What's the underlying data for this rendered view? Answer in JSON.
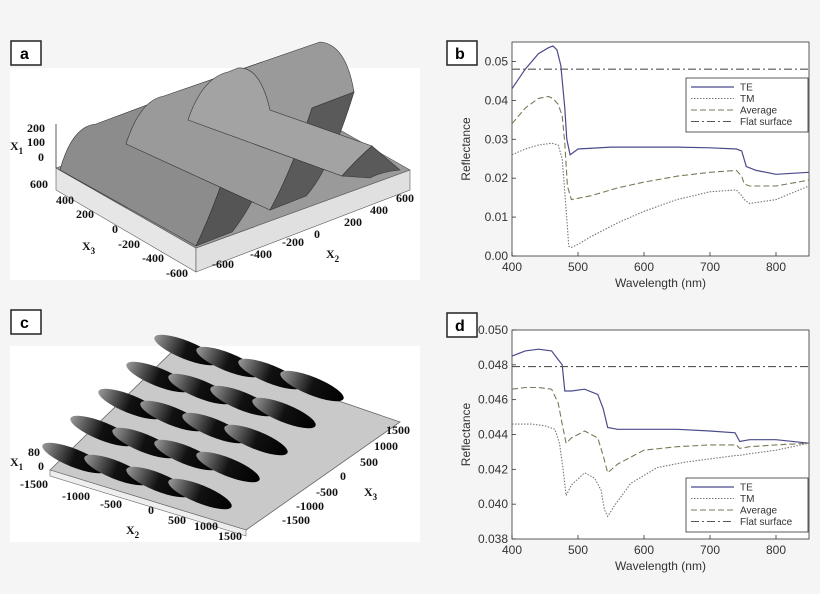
{
  "panels": {
    "a": {
      "label": "a"
    },
    "b": {
      "label": "b"
    },
    "c": {
      "label": "c"
    },
    "d": {
      "label": "d"
    }
  },
  "surface_a": {
    "x1_label": "X",
    "x1_sub": "1",
    "x2_label": "X",
    "x2_sub": "2",
    "x3_label": "X",
    "x3_sub": "3",
    "x1_ticks": [
      "200",
      "100",
      "0"
    ],
    "x3_ticks": [
      "600",
      "400",
      "200",
      "0",
      "-200",
      "-400",
      "-600"
    ],
    "x2_ticks": [
      "-600",
      "-400",
      "-200",
      "0",
      "200",
      "400",
      "600"
    ]
  },
  "surface_c": {
    "x1_label": "X",
    "x1_sub": "1",
    "x2_label": "X",
    "x2_sub": "2",
    "x3_label": "X",
    "x3_sub": "3",
    "x1_ticks": [
      "80",
      "0"
    ],
    "x2_ticks": [
      "-1500",
      "-1000",
      "-500",
      "0",
      "500",
      "1000",
      "1500"
    ],
    "x3_ticks": [
      "1500",
      "1000",
      "500",
      "0",
      "-500",
      "-1000",
      "-1500"
    ]
  },
  "colors": {
    "te": "#4a4a8a",
    "tm": "#777777",
    "average": "#7a7a5a",
    "flat": "#555555",
    "bg": "#f5f5f5"
  },
  "chart_data": [
    {
      "type": "line",
      "panel": "b",
      "title": "",
      "xlabel": "Wavelength (nm)",
      "ylabel": "Reflectance",
      "xlim": [
        400,
        850
      ],
      "ylim": [
        0.0,
        0.055
      ],
      "xticks": [
        400,
        500,
        600,
        700,
        800
      ],
      "yticks": [
        "0.00",
        "0.01",
        "0.02",
        "0.03",
        "0.04",
        "0.05"
      ],
      "ytick_values": [
        0.0,
        0.01,
        0.02,
        0.03,
        0.04,
        0.05
      ],
      "legend": [
        "TE",
        "TM",
        "Average",
        "Flat surface"
      ],
      "series": [
        {
          "name": "TE",
          "x": [
            400,
            420,
            440,
            455,
            462,
            468,
            474,
            480,
            483,
            488,
            500,
            550,
            600,
            650,
            700,
            740,
            748,
            755,
            770,
            800,
            850
          ],
          "y": [
            0.043,
            0.048,
            0.052,
            0.0535,
            0.054,
            0.053,
            0.049,
            0.038,
            0.03,
            0.026,
            0.0275,
            0.028,
            0.028,
            0.028,
            0.0278,
            0.0275,
            0.027,
            0.023,
            0.022,
            0.021,
            0.0215
          ]
        },
        {
          "name": "TM",
          "x": [
            400,
            420,
            440,
            460,
            470,
            476,
            482,
            486,
            490,
            500,
            520,
            560,
            600,
            650,
            700,
            740,
            748,
            752,
            760,
            800,
            850
          ],
          "y": [
            0.026,
            0.0275,
            0.0285,
            0.029,
            0.0285,
            0.025,
            0.012,
            0.0025,
            0.0022,
            0.003,
            0.005,
            0.0085,
            0.0115,
            0.0145,
            0.0165,
            0.017,
            0.0155,
            0.0145,
            0.0135,
            0.0145,
            0.018
          ]
        },
        {
          "name": "Average",
          "x": [
            400,
            420,
            440,
            455,
            462,
            470,
            476,
            480,
            484,
            490,
            520,
            560,
            600,
            650,
            700,
            740,
            748,
            752,
            760,
            800,
            850
          ],
          "y": [
            0.034,
            0.038,
            0.0405,
            0.041,
            0.0405,
            0.039,
            0.036,
            0.029,
            0.018,
            0.0145,
            0.0155,
            0.0175,
            0.019,
            0.0205,
            0.0215,
            0.022,
            0.0205,
            0.0185,
            0.018,
            0.018,
            0.0195
          ]
        },
        {
          "name": "Flat surface",
          "x": [
            400,
            850
          ],
          "y": [
            0.048,
            0.048
          ]
        }
      ]
    },
    {
      "type": "line",
      "panel": "d",
      "title": "",
      "xlabel": "Wavelength (nm)",
      "ylabel": "Reflectance",
      "xlim": [
        400,
        850
      ],
      "ylim": [
        0.038,
        0.05
      ],
      "xticks": [
        400,
        500,
        600,
        700,
        800
      ],
      "yticks": [
        "0.038",
        "0.040",
        "0.042",
        "0.044",
        "0.046",
        "0.048",
        "0.050"
      ],
      "ytick_values": [
        0.038,
        0.04,
        0.042,
        0.044,
        0.046,
        0.048,
        0.05
      ],
      "legend": [
        "TE",
        "TM",
        "Average",
        "Flat surface"
      ],
      "series": [
        {
          "name": "TE",
          "x": [
            400,
            420,
            440,
            460,
            470,
            476,
            480,
            490,
            510,
            530,
            538,
            545,
            560,
            600,
            650,
            700,
            738,
            745,
            760,
            800,
            850
          ],
          "y": [
            0.0485,
            0.0488,
            0.0489,
            0.0488,
            0.0483,
            0.048,
            0.0465,
            0.0465,
            0.0466,
            0.0463,
            0.0455,
            0.0444,
            0.0443,
            0.0443,
            0.0443,
            0.0442,
            0.0441,
            0.0436,
            0.0437,
            0.0437,
            0.0435
          ]
        },
        {
          "name": "TM",
          "x": [
            400,
            430,
            450,
            465,
            472,
            478,
            482,
            490,
            510,
            525,
            535,
            540,
            545,
            555,
            580,
            620,
            660,
            700,
            740,
            745,
            760,
            800,
            850
          ],
          "y": [
            0.0446,
            0.0446,
            0.0445,
            0.0443,
            0.0435,
            0.0418,
            0.0405,
            0.0411,
            0.0418,
            0.0415,
            0.0408,
            0.0397,
            0.0393,
            0.0399,
            0.0412,
            0.0421,
            0.0424,
            0.0426,
            0.0428,
            0.0428,
            0.0429,
            0.0431,
            0.0435
          ]
        },
        {
          "name": "Average",
          "x": [
            400,
            420,
            440,
            460,
            470,
            476,
            482,
            490,
            510,
            530,
            538,
            545,
            560,
            600,
            650,
            700,
            740,
            745,
            760,
            800,
            850
          ],
          "y": [
            0.0466,
            0.0467,
            0.0467,
            0.0466,
            0.0458,
            0.0446,
            0.0435,
            0.0438,
            0.0442,
            0.0438,
            0.0428,
            0.0418,
            0.0423,
            0.0431,
            0.0433,
            0.0434,
            0.0434,
            0.0432,
            0.0433,
            0.0434,
            0.0435
          ]
        },
        {
          "name": "Flat surface",
          "x": [
            400,
            850
          ],
          "y": [
            0.0479,
            0.0479
          ]
        }
      ]
    }
  ]
}
